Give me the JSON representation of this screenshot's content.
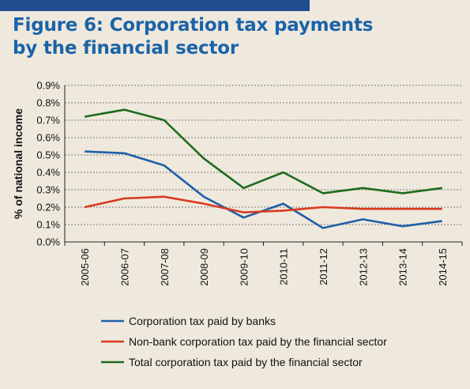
{
  "figure": {
    "title": "Figure 6: Corporation tax payments\nby the financial sector"
  },
  "chart_data": {
    "type": "line",
    "title": "Figure 6: Corporation tax payments by the financial sector",
    "xlabel": "",
    "ylabel": "% of national income",
    "categories": [
      "2005-06",
      "2006-07",
      "2007-08",
      "2008-09",
      "2009-10",
      "2010-11",
      "2011-12",
      "2012-13",
      "2013-14",
      "2014-15"
    ],
    "ylim": [
      0,
      0.9
    ],
    "yticks": [
      "0.0%",
      "0.1%",
      "0.2%",
      "0.3%",
      "0.4%",
      "0.5%",
      "0.6%",
      "0.7%",
      "0.8%",
      "0.9%"
    ],
    "grid": "horizontal dashed",
    "legend_position": "bottom",
    "series": [
      {
        "name": "Corporation tax paid by banks",
        "color": "#1f5fa8",
        "values": [
          0.52,
          0.51,
          0.44,
          0.26,
          0.14,
          0.22,
          0.08,
          0.13,
          0.09,
          0.12
        ]
      },
      {
        "name": "Non-bank corporation tax paid by the financial sector",
        "color": "#d83a1f",
        "values": [
          0.2,
          0.25,
          0.26,
          0.22,
          0.17,
          0.18,
          0.2,
          0.19,
          0.19,
          0.19
        ]
      },
      {
        "name": "Total corporation tax paid by the financial sector",
        "color": "#1e6b1e",
        "values": [
          0.72,
          0.76,
          0.7,
          0.48,
          0.31,
          0.4,
          0.28,
          0.31,
          0.28,
          0.31
        ]
      }
    ]
  }
}
